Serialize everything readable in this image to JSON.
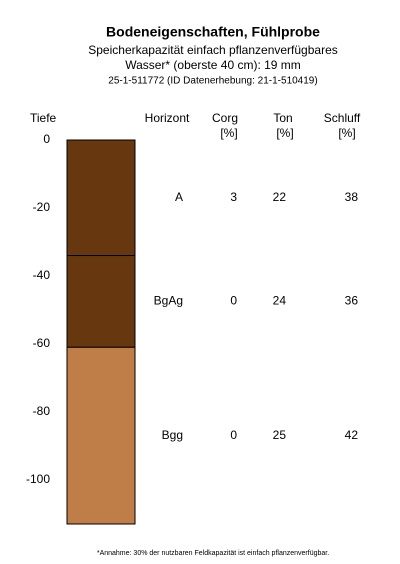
{
  "chart_data": {
    "type": "soil-profile",
    "title": "Bodeneigenschaften, Fühlprobe",
    "subtitle": [
      "Speicherkapazität einfach pflanzenverfügbares",
      "Wasser* (oberste 40 cm): 19 mm",
      "25-1-511772 (ID Datenerhebung: 21-1-510419)"
    ],
    "y_label": "Tiefe",
    "ylim": [
      0,
      -113
    ],
    "yticks": [
      0,
      -20,
      -40,
      -60,
      -80,
      -100
    ],
    "columns": [
      {
        "name": "Horizont"
      },
      {
        "name": "Corg",
        "unit": "[%]"
      },
      {
        "name": "Ton",
        "unit": "[%]"
      },
      {
        "name": "Schluff",
        "unit": "[%]"
      }
    ],
    "layers": [
      {
        "horizont": "A",
        "top": 0,
        "bottom": -34,
        "color": "#673810",
        "corg": 3,
        "ton": 22,
        "schluff": 38
      },
      {
        "horizont": "BgAg",
        "top": -34,
        "bottom": -61,
        "color": "#673810",
        "corg": 0,
        "ton": 24,
        "schluff": 36
      },
      {
        "horizont": "Bgg",
        "top": -61,
        "bottom": -113,
        "color": "#bf7e48",
        "corg": 0,
        "ton": 25,
        "schluff": 42
      }
    ],
    "footnote": "*Annahme: 30% der nutzbaren Feldkapazität ist einfach pflanzenverfügbar."
  }
}
